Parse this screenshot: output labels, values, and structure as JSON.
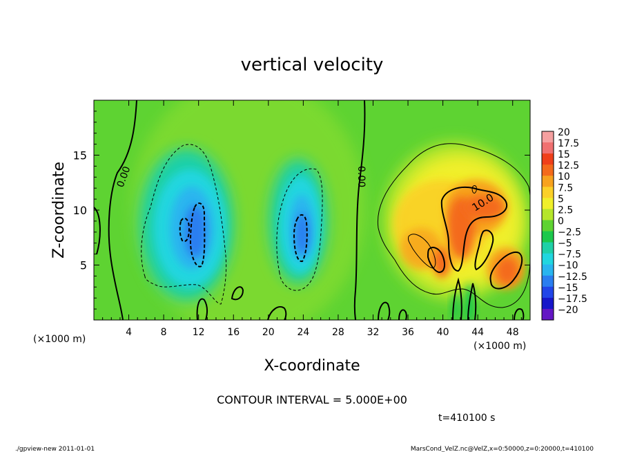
{
  "chart_data": {
    "type": "heatmap",
    "title": "vertical velocity",
    "xlabel": "X-coordinate",
    "ylabel": "Z-coordinate",
    "x_unit": "(×1000 m)",
    "x_unit_right": "(×1000 m)",
    "xlim": [
      0,
      50
    ],
    "ylim": [
      0,
      20
    ],
    "x_ticks": [
      4,
      8,
      12,
      16,
      20,
      24,
      28,
      32,
      36,
      40,
      44,
      48
    ],
    "y_ticks": [
      5,
      10,
      15
    ],
    "colorbar": {
      "levels": [
        20,
        17.5,
        15,
        12.5,
        10,
        7.5,
        5,
        2.5,
        0,
        -2.5,
        -5,
        -7.5,
        -10,
        -12.5,
        -15,
        -17.5,
        -20
      ],
      "labels": [
        "20",
        "17.5",
        "15",
        "12.5",
        "10",
        "7.5",
        "5",
        "2.5",
        "0",
        "−2.5",
        "−5",
        "−7.5",
        "−10",
        "−12.5",
        "−15",
        "−17.5",
        "−20"
      ],
      "colors": [
        "#f5a0a0",
        "#f07070",
        "#ef3f1a",
        "#f46a1b",
        "#f7a21e",
        "#fbd028",
        "#f0ef2a",
        "#b5e62b",
        "#5ed332",
        "#1cc84c",
        "#1fd0a7",
        "#21d6df",
        "#29b5ef",
        "#2a7ef0",
        "#2145e8",
        "#1716c9",
        "#6316c4"
      ]
    },
    "contour_labels": [
      "0.00",
      "0.00",
      "10.0"
    ],
    "contour_interval_text": "CONTOUR INTERVAL = 5.000E+00",
    "time_text": "t=410100 s",
    "fields": [
      {
        "kind": "downdraft",
        "x_center": 11.5,
        "z_center": 8.5,
        "min_w": -12.0
      },
      {
        "kind": "downdraft",
        "x_center": 23.8,
        "z_center": 8.0,
        "min_w": -12.0
      },
      {
        "kind": "updraft",
        "x_center": 42,
        "z_center": 9.5,
        "max_w": 14.0
      },
      {
        "kind": "updraft",
        "x_center": 46.5,
        "z_center": 5.0,
        "max_w": 13.0
      }
    ]
  },
  "footer": {
    "left": "./gpview-new  2011-01-01",
    "right": "MarsCond_VelZ.nc@VelZ,x=0:50000,z=0:20000,t=410100"
  }
}
